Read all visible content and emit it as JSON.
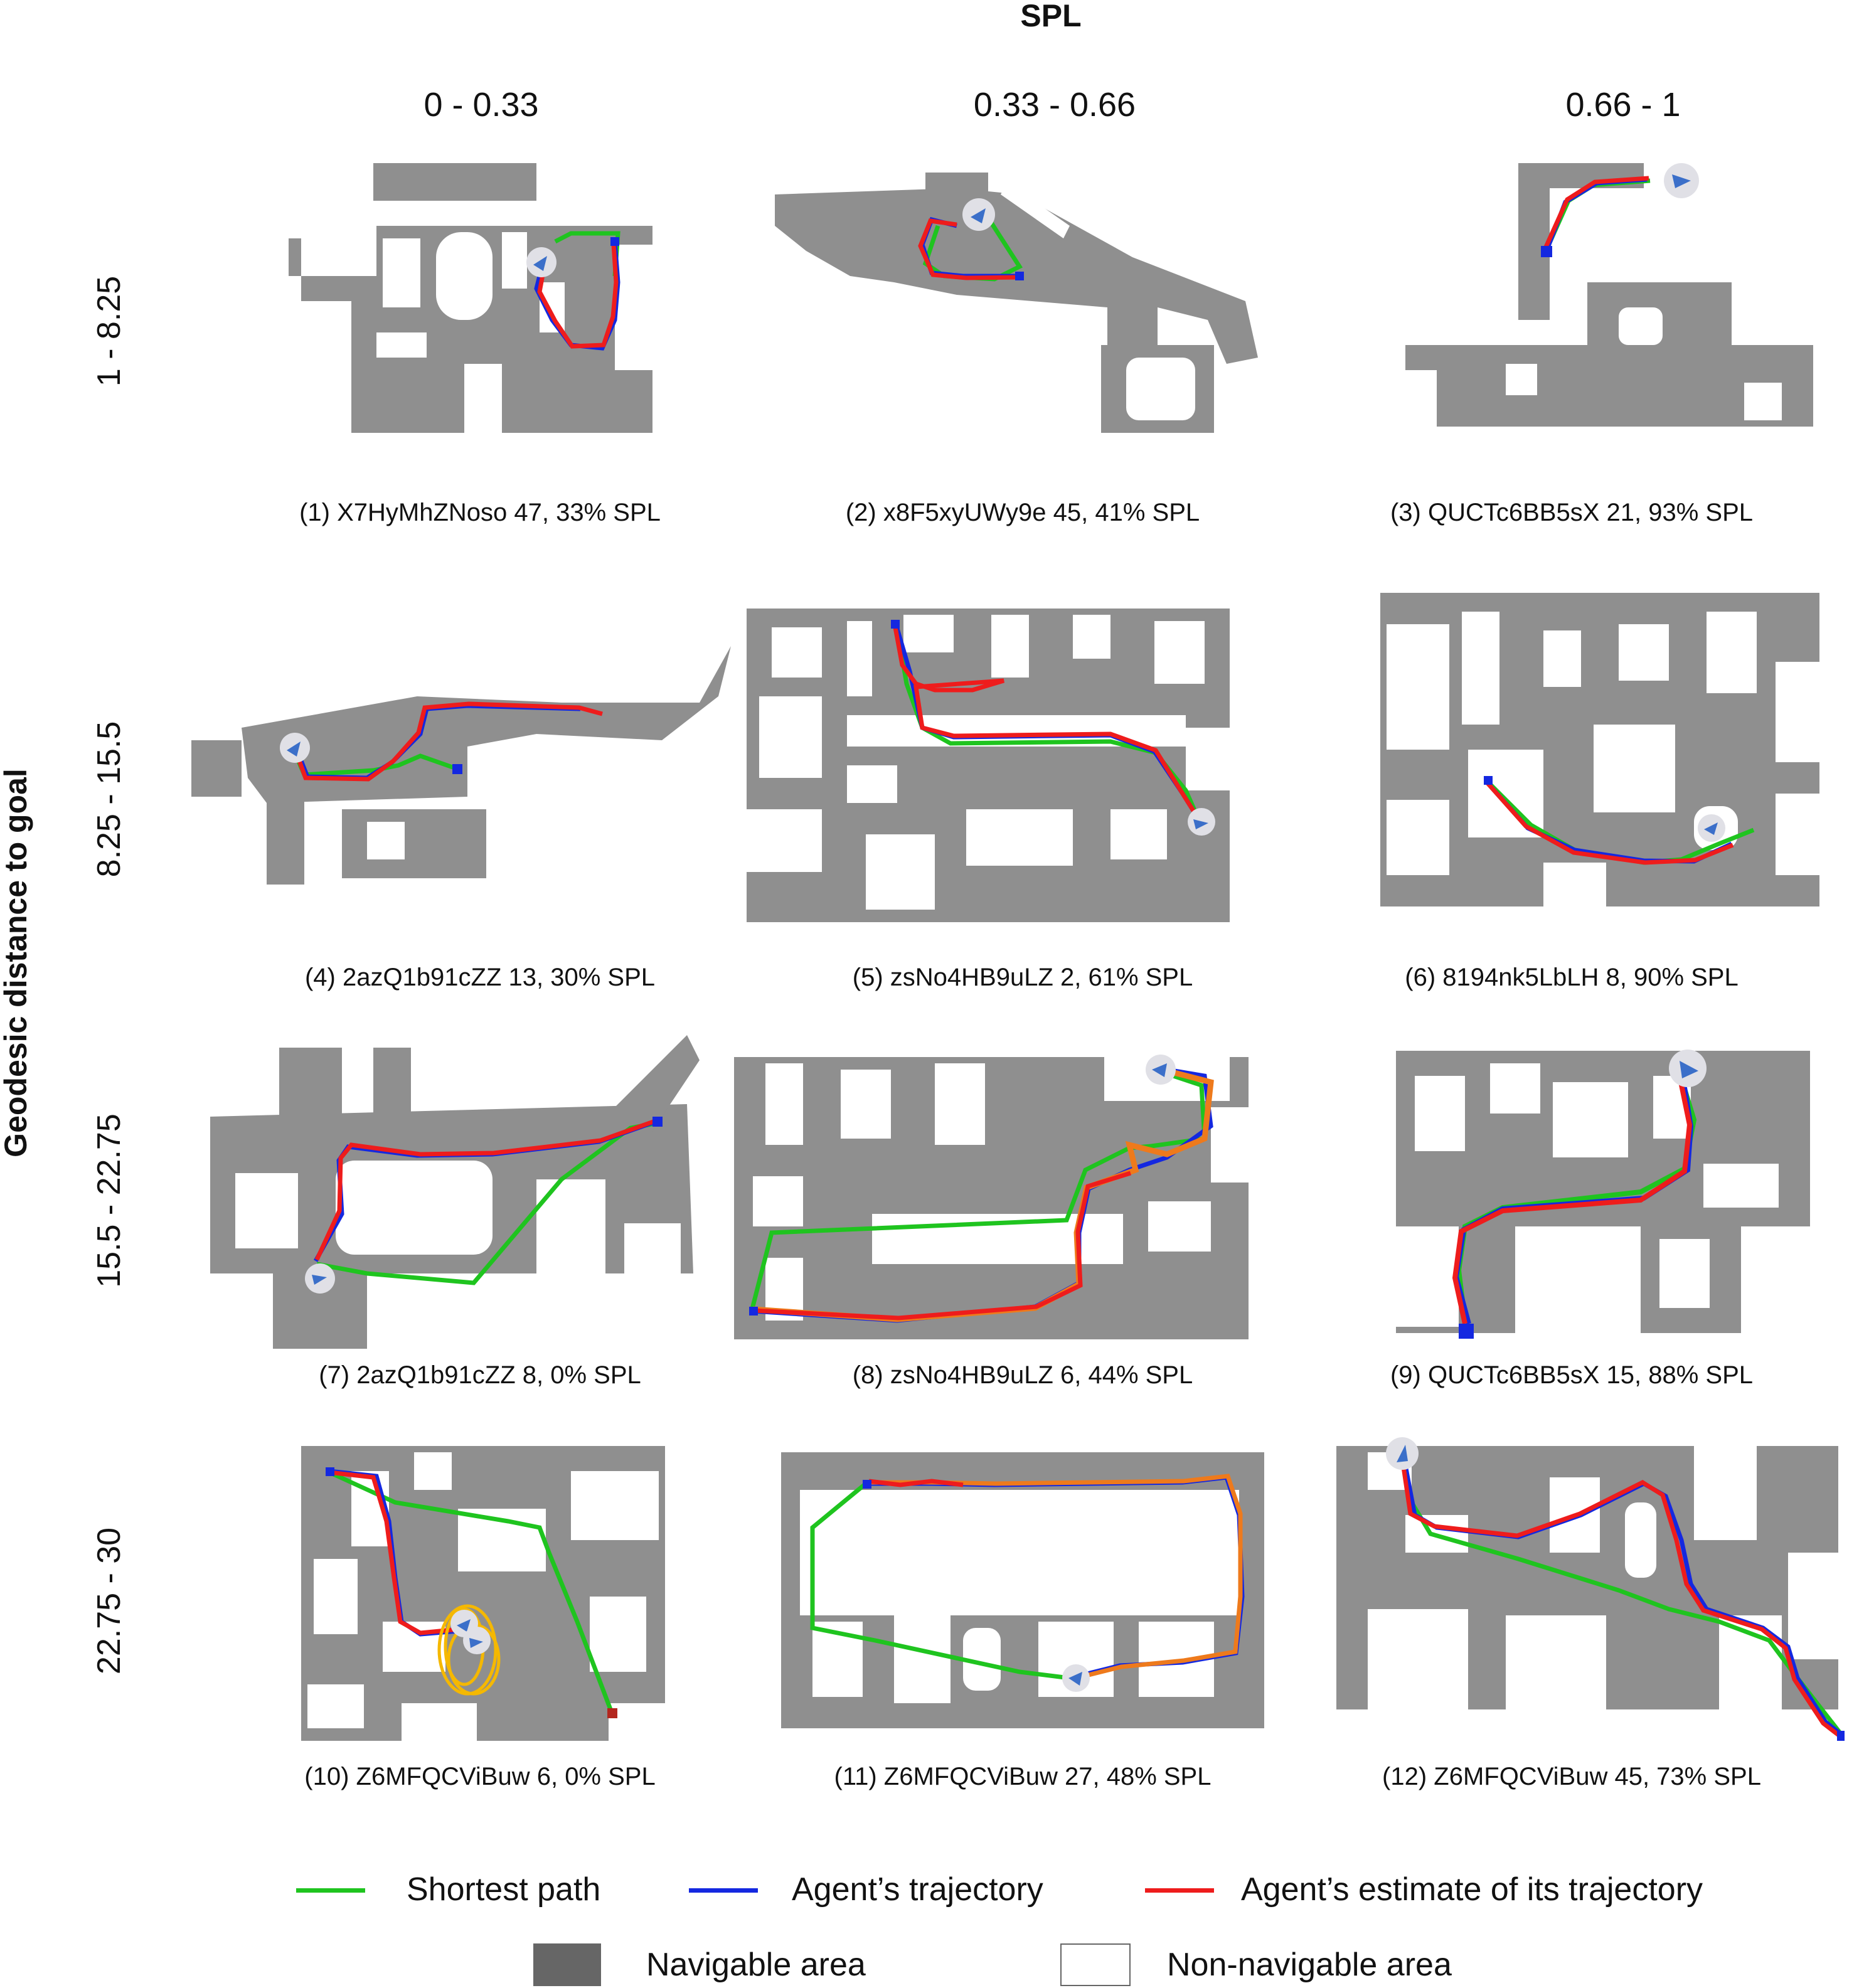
{
  "header": {
    "title": "SPL",
    "columns": [
      "0 - 0.33",
      "0.33 - 0.66",
      "0.66 - 1"
    ]
  },
  "y_axis": {
    "title": "Geodesic distance to goal",
    "rows": [
      "1 - 8.25",
      "8.25 - 15.5",
      "15.5 - 22.75",
      "22.75 - 30"
    ]
  },
  "panels": [
    {
      "caption": "(1) X7HyMhZNoso 47, 33% SPL"
    },
    {
      "caption": "(2) x8F5xyUWy9e 45, 41% SPL"
    },
    {
      "caption": "(3) QUCTc6BB5sX 21, 93% SPL"
    },
    {
      "caption": "(4) 2azQ1b91cZZ 13, 30% SPL"
    },
    {
      "caption": "(5) zsNo4HB9uLZ 2, 61% SPL"
    },
    {
      "caption": "(6) 8194nk5LbLH 8, 90% SPL"
    },
    {
      "caption": "(7) 2azQ1b91cZZ 8, 0% SPL"
    },
    {
      "caption": "(8) zsNo4HB9uLZ 6, 44% SPL"
    },
    {
      "caption": "(9) QUCTc6BB5sX 15, 88% SPL"
    },
    {
      "caption": "(10) Z6MFQCViBuw 6, 0% SPL"
    },
    {
      "caption": "(11) Z6MFQCViBuw 27, 48% SPL"
    },
    {
      "caption": "(12) Z6MFQCViBuw 45, 73% SPL"
    }
  ],
  "legend": {
    "shortest_path": "Shortest path",
    "agent_trajectory": "Agent’s trajectory",
    "agent_estimate": "Agent’s estimate of its trajectory",
    "navigable": "Navigable area",
    "non_navigable": "Non-navigable area"
  },
  "colors": {
    "navigable": "#8f8f8f",
    "shortest": "#1fc41f",
    "trajectory": "#1428e0",
    "estimate": "#ee1c1c",
    "agent_marker": "#3b6fc9"
  }
}
